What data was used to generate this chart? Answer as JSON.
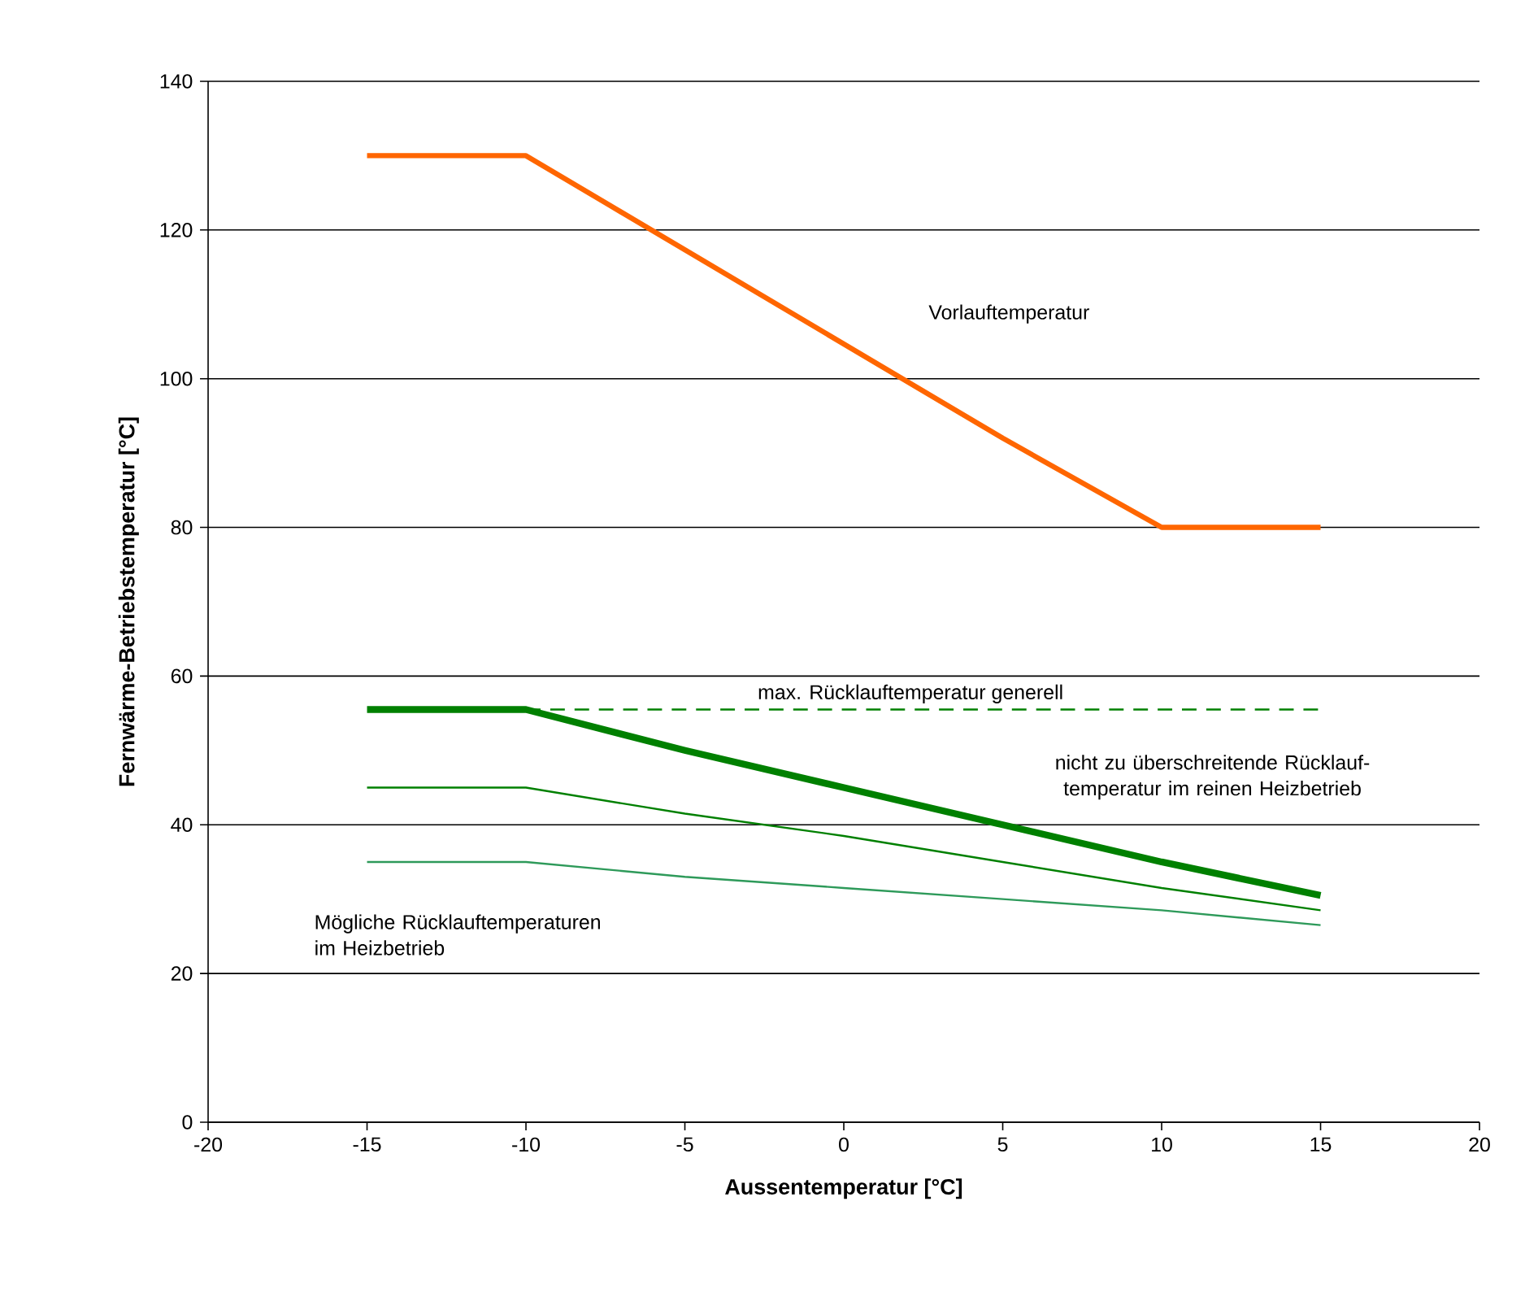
{
  "chart_data": {
    "type": "line",
    "xlabel": "Aussentemperatur [°C]",
    "ylabel": "Fernwärme-Betriebstemperatur [°C]",
    "xlim": [
      -20,
      20
    ],
    "xticks": [
      -20,
      -15,
      -10,
      -5,
      0,
      5,
      10,
      15,
      20
    ],
    "ylim": [
      0,
      140
    ],
    "yticks": [
      0,
      20,
      40,
      60,
      80,
      100,
      120,
      140
    ],
    "grid": "y",
    "marker": "none",
    "series": [
      {
        "color": "#ff6600",
        "x": [
          -15,
          -10,
          5,
          10,
          15
        ],
        "values": [
          130,
          130,
          92,
          80,
          80
        ],
        "line_style": "solid"
      },
      {
        "color": "#008000",
        "x": [
          -10,
          15
        ],
        "values": [
          55.5,
          55.5
        ],
        "line_style": "dashed"
      },
      {
        "color": "#008000",
        "x": [
          -15,
          -10,
          -5,
          0,
          5,
          10,
          15
        ],
        "values": [
          55.5,
          55.5,
          50,
          45,
          40,
          35,
          30.5
        ],
        "line_style": "solid"
      },
      {
        "color": "#008000",
        "x": [
          -15,
          -10,
          -5,
          0,
          5,
          10,
          15
        ],
        "values": [
          45,
          45,
          41.5,
          38.5,
          35,
          31.5,
          28.5
        ],
        "line_style": "solid"
      },
      {
        "color": "#2e9a5a",
        "x": [
          -15,
          -10,
          -5,
          0,
          5,
          10,
          15
        ],
        "values": [
          35,
          35,
          33,
          31.5,
          30,
          28.5,
          26.5
        ],
        "line_style": "solid"
      }
    ],
    "annotations": [
      "Vorlauftemperatur",
      "max. Rücklauftemperatur generell",
      "nicht zu überschreitende Rücklauf- temperatur im reinen Heizbetrieb",
      "Mögliche Rücklauftemperaturen im Heizbetrieb"
    ]
  }
}
